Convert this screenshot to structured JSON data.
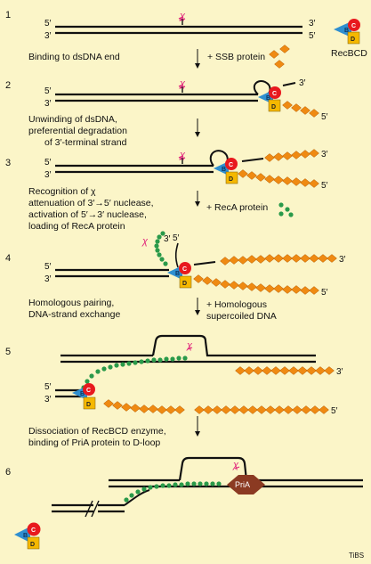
{
  "figure": {
    "credit": "TiBS",
    "colors": {
      "background": "#fbf5c8",
      "dna": "#111111",
      "ssb": "#ef8a12",
      "ssb_stroke": "#b55a00",
      "reca": "#2a9a4a",
      "subunit_b": "#2f8fd0",
      "subunit_c": "#e8191e",
      "subunit_d": "#f5b800",
      "chi": "#e0207a",
      "pria": "#8b3a22"
    },
    "molecules": {
      "enzyme": "RecBCD",
      "subunit_b": "B",
      "subunit_c": "C",
      "subunit_d": "D",
      "chi": "χ",
      "pria": "PriA"
    },
    "ends": {
      "five": "5′",
      "three": "3′"
    },
    "steps": [
      {
        "number": "1",
        "caption": [
          "Binding to dsDNA end"
        ],
        "addition": "+ SSB protein"
      },
      {
        "number": "2",
        "caption": [
          "Unwinding of dsDNA,",
          "preferential degradation",
          "of 3′-terminal strand"
        ]
      },
      {
        "number": "3",
        "caption": [
          "Recognition of χ",
          "attenuation of 3′→5′ nuclease,",
          "activation of 5′→3′ nuclease,",
          "loading of RecA protein"
        ],
        "addition": "+ RecA protein"
      },
      {
        "number": "4",
        "caption": [
          "Homologous pairing,",
          "DNA-strand exchange"
        ],
        "addition": [
          "+ Homologous",
          "supercoiled DNA"
        ]
      },
      {
        "number": "5",
        "caption": [
          "Dissociation of RecBCD enzyme,",
          "binding of PriA protein to D-loop"
        ]
      },
      {
        "number": "6"
      }
    ]
  }
}
